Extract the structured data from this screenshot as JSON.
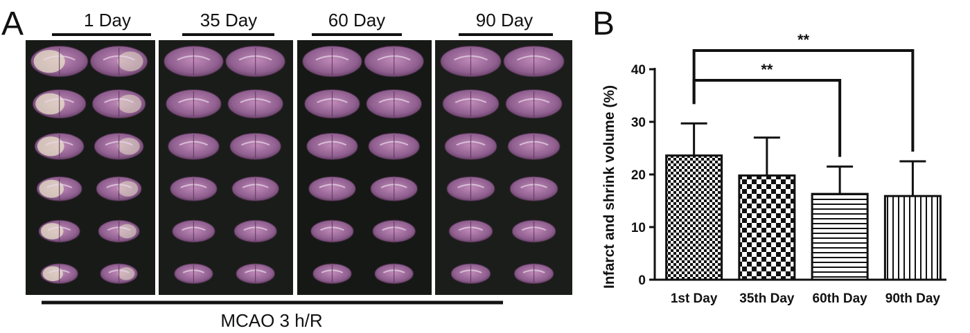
{
  "panel_a": {
    "letter": "A",
    "groups": [
      "1 Day",
      "35 Day",
      "60 Day",
      "90 Day"
    ],
    "bottom_label": "MCAO 3 h/R",
    "panel_colors": [
      "#181a17",
      "#1a1c19",
      "#161815",
      "#1b1d1a"
    ],
    "tissue_color": "#9a6a98",
    "lesion_color": "#e8e2c8"
  },
  "panel_b": {
    "letter": "B",
    "significance": [
      {
        "from": 0,
        "to": 2,
        "label": "**"
      },
      {
        "from": 0,
        "to": 3,
        "label": "**"
      }
    ]
  },
  "chart_data": {
    "type": "bar",
    "categories": [
      "1st Day",
      "35th Day",
      "60th Day",
      "90th Day"
    ],
    "values": [
      23.6,
      19.8,
      16.3,
      15.9
    ],
    "errors": [
      6.1,
      7.2,
      5.2,
      6.6
    ],
    "patterns": [
      "checker-fine",
      "checker-coarse",
      "horizontal-lines",
      "vertical-lines"
    ],
    "title": "",
    "xlabel": "",
    "ylabel": "Infarct and shrink volume (%)",
    "ylim": [
      0,
      40
    ],
    "yticks": [
      0,
      10,
      20,
      30,
      40
    ],
    "grid": false,
    "legend": "none"
  }
}
